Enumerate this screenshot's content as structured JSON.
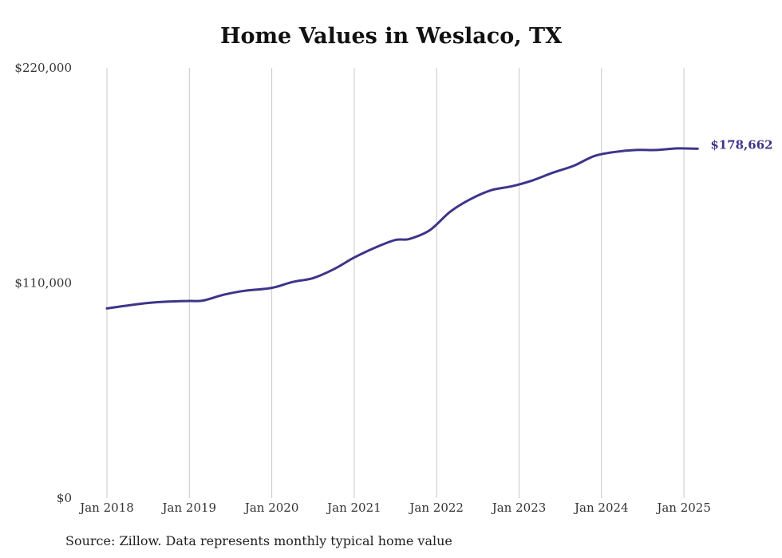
{
  "chart_data": {
    "type": "line",
    "title": "Home Values in Weslaco, TX",
    "source": "Source: Zillow. Data represents monthly typical home value",
    "ylim": [
      0,
      220000
    ],
    "y_ticks": [
      {
        "value": 0,
        "label": "$0"
      },
      {
        "value": 110000,
        "label": "$110,000"
      },
      {
        "value": 220000,
        "label": "$220,000"
      }
    ],
    "x_ticks": [
      {
        "date": "2018-01",
        "label": "Jan 2018"
      },
      {
        "date": "2019-01",
        "label": "Jan 2019"
      },
      {
        "date": "2020-01",
        "label": "Jan 2020"
      },
      {
        "date": "2021-01",
        "label": "Jan 2021"
      },
      {
        "date": "2022-01",
        "label": "Jan 2022"
      },
      {
        "date": "2023-01",
        "label": "Jan 2023"
      },
      {
        "date": "2024-01",
        "label": "Jan 2024"
      },
      {
        "date": "2025-01",
        "label": "Jan 2025"
      }
    ],
    "x_range": [
      "2018-01",
      "2025-03"
    ],
    "grid": "vertical",
    "line_color": "#3d3589",
    "series": [
      {
        "name": "",
        "end_label": "$178,662",
        "points": [
          {
            "date": "2018-01",
            "value": 97000
          },
          {
            "date": "2018-04",
            "value": 98500
          },
          {
            "date": "2018-07",
            "value": 99800
          },
          {
            "date": "2018-10",
            "value": 100500
          },
          {
            "date": "2019-01",
            "value": 100800
          },
          {
            "date": "2019-03",
            "value": 101000
          },
          {
            "date": "2019-06",
            "value": 104000
          },
          {
            "date": "2019-09",
            "value": 106000
          },
          {
            "date": "2020-01",
            "value": 107500
          },
          {
            "date": "2020-04",
            "value": 110500
          },
          {
            "date": "2020-07",
            "value": 112500
          },
          {
            "date": "2020-10",
            "value": 117000
          },
          {
            "date": "2021-01",
            "value": 123000
          },
          {
            "date": "2021-04",
            "value": 128000
          },
          {
            "date": "2021-07",
            "value": 132000
          },
          {
            "date": "2021-09",
            "value": 132500
          },
          {
            "date": "2021-12",
            "value": 137000
          },
          {
            "date": "2022-03",
            "value": 146500
          },
          {
            "date": "2022-06",
            "value": 153000
          },
          {
            "date": "2022-09",
            "value": 157500
          },
          {
            "date": "2022-12",
            "value": 159500
          },
          {
            "date": "2023-03",
            "value": 162500
          },
          {
            "date": "2023-06",
            "value": 166500
          },
          {
            "date": "2023-09",
            "value": 170000
          },
          {
            "date": "2023-12",
            "value": 175000
          },
          {
            "date": "2024-03",
            "value": 177000
          },
          {
            "date": "2024-06",
            "value": 178000
          },
          {
            "date": "2024-09",
            "value": 178000
          },
          {
            "date": "2024-12",
            "value": 178800
          },
          {
            "date": "2025-03",
            "value": 178662
          }
        ]
      }
    ]
  }
}
